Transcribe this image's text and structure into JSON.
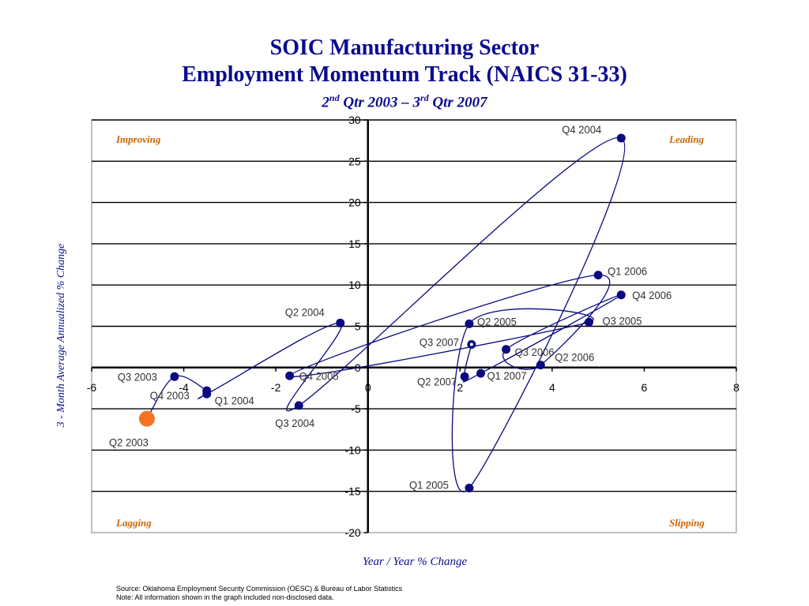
{
  "page": {
    "title_line1": "SOIC Manufacturing Sector",
    "title_line2": "Employment Momentum Track (NAICS 31-33)",
    "subtitle": {
      "q1": "2",
      "q1_sup": "nd",
      "mid": " Qtr 2003 – ",
      "q2": "3",
      "q2_sup": "rd",
      "end": " Qtr 2007"
    },
    "source": "Source:  Oklahoma Employment Security Commission (OESC) & Bureau of Labor Statistics",
    "note": "Note: All information shown in the graph included non-disclosed data."
  },
  "chart_data": {
    "type": "scatter",
    "title": "SOIC Manufacturing Sector Employment Momentum Track (NAICS 31-33)",
    "xlabel": "Year / Year % Change",
    "ylabel": "3 - Month Average Annualized % Change",
    "xlim": [
      -6,
      8
    ],
    "ylim": [
      -20,
      30
    ],
    "xticks": [
      -6,
      -4,
      -2,
      0,
      2,
      4,
      6,
      8
    ],
    "yticks": [
      -20,
      -15,
      -10,
      -5,
      0,
      5,
      10,
      15,
      20,
      25,
      30
    ],
    "grid": "horizontal",
    "quadrants": {
      "top_left": "Improving",
      "top_right": "Leading",
      "bottom_left": "Lagging",
      "bottom_right": "Slipping"
    },
    "colors": {
      "point": "#0a0a80",
      "start_point": "#f47321",
      "end_point": "#ffffff",
      "line": "#0a0a80",
      "text": "#0b0b8f",
      "quadrant": "#cc6600"
    },
    "points": [
      {
        "label": "Q2 2003",
        "x": -4.8,
        "y": -6.2
      },
      {
        "label": "Q3 2003",
        "x": -4.2,
        "y": -1.1
      },
      {
        "label": "Q4 2003",
        "x": -3.5,
        "y": -2.8
      },
      {
        "label": "Q1 2004",
        "x": -3.5,
        "y": -3.2
      },
      {
        "label": "Q2 2004",
        "x": -0.6,
        "y": 5.4
      },
      {
        "label": "Q3 2004",
        "x": -1.5,
        "y": -4.6
      },
      {
        "label": "Q4 2004",
        "x": 5.5,
        "y": 27.8
      },
      {
        "label": "Q1 2005",
        "x": 2.2,
        "y": -14.6
      },
      {
        "label": "Q2 2005",
        "x": 2.2,
        "y": 5.3
      },
      {
        "label": "Q3 2005",
        "x": 4.8,
        "y": 5.5
      },
      {
        "label": "Q4 2005",
        "x": -1.7,
        "y": -1.0
      },
      {
        "label": "Q1 2006",
        "x": 5.0,
        "y": 11.2
      },
      {
        "label": "Q2 2006",
        "x": 3.75,
        "y": 0.3
      },
      {
        "label": "Q3 2006",
        "x": 3.0,
        "y": 2.2
      },
      {
        "label": "Q4 2006",
        "x": 5.5,
        "y": 8.8
      },
      {
        "label": "Q1 2007",
        "x": 2.45,
        "y": -0.7
      },
      {
        "label": "Q2 2007",
        "x": 2.1,
        "y": -1.1
      },
      {
        "label": "Q3 2007",
        "x": 2.25,
        "y": 2.8
      }
    ]
  }
}
